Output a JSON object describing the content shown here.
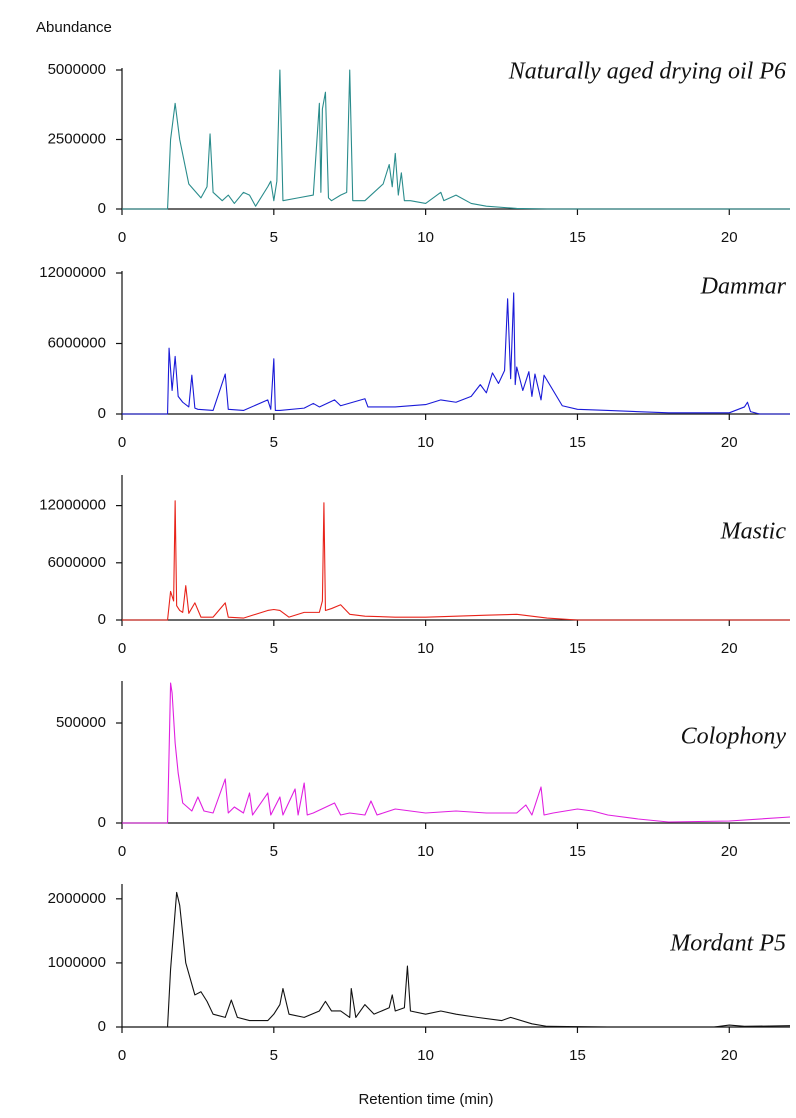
{
  "chart_data": [
    {
      "type": "line",
      "title": "Naturally aged drying oil P6",
      "y_label": "Abundance",
      "color": "#2a8c8c",
      "x": [
        0,
        1.5,
        1.6,
        1.75,
        1.9,
        2.2,
        2.6,
        2.8,
        2.9,
        3.0,
        3.3,
        3.5,
        3.7,
        4.0,
        4.2,
        4.4,
        4.8,
        4.9,
        5.0,
        5.1,
        5.2,
        5.3,
        5.8,
        6.3,
        6.5,
        6.55,
        6.6,
        6.7,
        6.8,
        6.9,
        7.2,
        7.4,
        7.5,
        7.6,
        8.0,
        8.6,
        8.8,
        8.9,
        9.0,
        9.1,
        9.2,
        9.3,
        9.5,
        10.0,
        10.5,
        10.6,
        11.0,
        11.5,
        12.0,
        13.0,
        14.0,
        22.0
      ],
      "values": [
        0,
        0,
        2500000,
        3800000,
        2500000,
        900000,
        400000,
        800000,
        2700000,
        600000,
        300000,
        500000,
        200000,
        600000,
        500000,
        100000,
        800000,
        1000000,
        300000,
        1000000,
        5000000,
        300000,
        400000,
        500000,
        3800000,
        600000,
        3600000,
        4200000,
        400000,
        300000,
        500000,
        600000,
        5000000,
        300000,
        300000,
        900000,
        1600000,
        800000,
        2000000,
        500000,
        1300000,
        300000,
        300000,
        200000,
        600000,
        300000,
        500000,
        200000,
        100000,
        20000,
        0,
        0
      ],
      "xlim": [
        0,
        22
      ],
      "xticks": [
        0,
        5,
        10,
        15,
        20
      ],
      "ylim": [
        0,
        5000000
      ],
      "yticks": [
        0,
        2500000,
        5000000
      ]
    },
    {
      "type": "line",
      "title": "Dammar",
      "color": "#1a1ad8",
      "x": [
        0,
        1.5,
        1.55,
        1.65,
        1.75,
        1.85,
        2.0,
        2.2,
        2.3,
        2.4,
        2.5,
        3.0,
        3.4,
        3.5,
        4.0,
        4.8,
        4.9,
        5.0,
        5.05,
        5.2,
        6.0,
        6.3,
        6.5,
        7.0,
        7.2,
        8.0,
        8.1,
        9.0,
        10.0,
        10.5,
        11.0,
        11.5,
        11.8,
        12.0,
        12.2,
        12.4,
        12.6,
        12.7,
        12.8,
        12.9,
        12.95,
        13.0,
        13.2,
        13.4,
        13.5,
        13.6,
        13.8,
        13.9,
        14.5,
        15.0,
        16.0,
        17.0,
        18.0,
        19.0,
        20.0,
        20.5,
        20.6,
        20.7,
        21.0,
        22.0
      ],
      "values": [
        0,
        0,
        5600000,
        2000000,
        4900000,
        1500000,
        1000000,
        600000,
        3300000,
        500000,
        400000,
        300000,
        3400000,
        400000,
        300000,
        1200000,
        400000,
        4700000,
        300000,
        300000,
        500000,
        900000,
        600000,
        1200000,
        700000,
        1300000,
        600000,
        600000,
        800000,
        1200000,
        1000000,
        1500000,
        2500000,
        1800000,
        3500000,
        2600000,
        3700000,
        9800000,
        3000000,
        10300000,
        2500000,
        4000000,
        2000000,
        3600000,
        1500000,
        3400000,
        1200000,
        3300000,
        700000,
        400000,
        300000,
        200000,
        100000,
        100000,
        100000,
        600000,
        1000000,
        200000,
        0,
        0
      ],
      "xlim": [
        0,
        22
      ],
      "xticks": [
        0,
        5,
        10,
        15,
        20
      ],
      "ylim": [
        0,
        12000000
      ],
      "yticks": [
        0,
        6000000,
        12000000
      ]
    },
    {
      "type": "line",
      "title": "Mastic",
      "color": "#e8231a",
      "x": [
        0,
        1.5,
        1.6,
        1.7,
        1.75,
        1.8,
        1.9,
        2.0,
        2.1,
        2.2,
        2.4,
        2.6,
        3.0,
        3.4,
        3.5,
        4.0,
        4.8,
        5.0,
        5.2,
        5.5,
        6.0,
        6.5,
        6.6,
        6.65,
        6.7,
        6.9,
        7.2,
        7.5,
        8.0,
        9.0,
        10.0,
        11.0,
        12.0,
        13.0,
        13.5,
        14.0,
        15.0,
        22.0
      ],
      "values": [
        0,
        0,
        3000000,
        2000000,
        12500000,
        1500000,
        1000000,
        800000,
        3600000,
        700000,
        1800000,
        300000,
        300000,
        1800000,
        300000,
        200000,
        1000000,
        1100000,
        1000000,
        300000,
        800000,
        800000,
        2000000,
        12300000,
        1000000,
        1200000,
        1600000,
        600000,
        400000,
        300000,
        300000,
        400000,
        500000,
        600000,
        400000,
        200000,
        0,
        0
      ],
      "xlim": [
        0,
        22
      ],
      "xticks": [
        0,
        5,
        10,
        15,
        20
      ],
      "ylim": [
        0,
        15000000
      ],
      "yticks": [
        0,
        6000000,
        12000000
      ]
    },
    {
      "type": "line",
      "title": "Colophony",
      "color": "#e020e0",
      "x": [
        0,
        1.5,
        1.6,
        1.65,
        1.75,
        1.85,
        2.0,
        2.3,
        2.5,
        2.7,
        3.0,
        3.4,
        3.5,
        3.7,
        4.0,
        4.2,
        4.3,
        4.8,
        4.9,
        5.2,
        5.3,
        5.7,
        5.8,
        6.0,
        6.1,
        6.3,
        7.0,
        7.2,
        7.5,
        8.0,
        8.2,
        8.4,
        9.0,
        10.0,
        11.0,
        12.0,
        13.0,
        13.3,
        13.5,
        13.8,
        13.9,
        14.2,
        15.0,
        15.5,
        16.0,
        17.0,
        18.0,
        20.0,
        22.0
      ],
      "values": [
        0,
        0,
        700000,
        650000,
        400000,
        250000,
        100000,
        60000,
        130000,
        60000,
        50000,
        220000,
        50000,
        80000,
        50000,
        150000,
        40000,
        150000,
        40000,
        130000,
        40000,
        170000,
        40000,
        200000,
        40000,
        50000,
        100000,
        40000,
        50000,
        40000,
        110000,
        40000,
        70000,
        50000,
        60000,
        50000,
        50000,
        90000,
        40000,
        180000,
        40000,
        50000,
        70000,
        60000,
        40000,
        20000,
        5000,
        10000,
        30000
      ],
      "xlim": [
        0,
        22
      ],
      "xticks": [
        0,
        5,
        10,
        15,
        20
      ],
      "ylim": [
        0,
        700000
      ],
      "yticks": [
        0,
        500000
      ]
    },
    {
      "type": "line",
      "title": "Mordant P5",
      "x_label": "Retention time (min)",
      "color": "#111111",
      "x": [
        0,
        1.5,
        1.6,
        1.8,
        1.9,
        2.1,
        2.4,
        2.6,
        2.8,
        3.0,
        3.4,
        3.6,
        3.8,
        4.2,
        4.8,
        5.0,
        5.2,
        5.3,
        5.5,
        6.0,
        6.5,
        6.7,
        6.9,
        7.2,
        7.5,
        7.55,
        7.7,
        8.0,
        8.3,
        8.8,
        8.9,
        9.0,
        9.3,
        9.4,
        9.5,
        10.0,
        10.5,
        11.0,
        11.7,
        12.5,
        12.8,
        13.5,
        14.0,
        16.0,
        19.5,
        20.0,
        20.5,
        22.0
      ],
      "values": [
        0,
        0,
        900000,
        2100000,
        1900000,
        1000000,
        500000,
        550000,
        400000,
        200000,
        150000,
        420000,
        150000,
        100000,
        100000,
        200000,
        350000,
        600000,
        200000,
        150000,
        250000,
        400000,
        250000,
        250000,
        150000,
        600000,
        150000,
        350000,
        200000,
        300000,
        500000,
        250000,
        300000,
        950000,
        250000,
        200000,
        250000,
        200000,
        150000,
        100000,
        150000,
        50000,
        10000,
        0,
        0,
        30000,
        10000,
        20000
      ],
      "xlim": [
        0,
        22
      ],
      "xticks": [
        0,
        5,
        10,
        15,
        20
      ],
      "ylim": [
        0,
        2200000
      ],
      "yticks": [
        0,
        1000000,
        2000000
      ]
    }
  ]
}
